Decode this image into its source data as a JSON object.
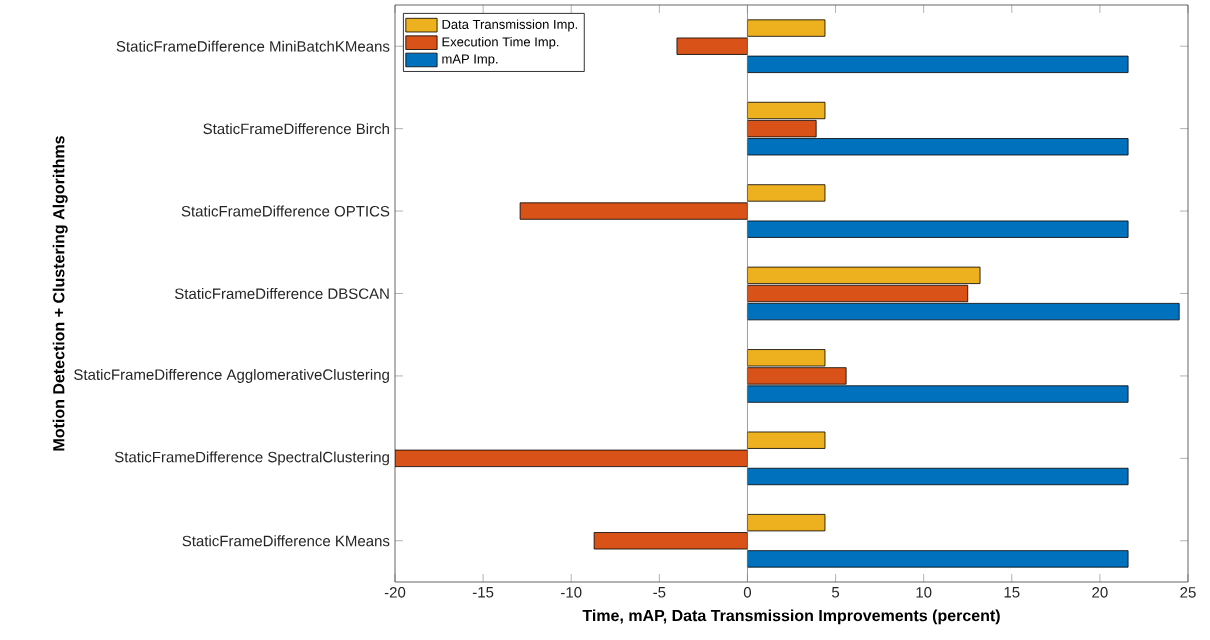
{
  "chart_data": {
    "type": "bar",
    "orientation": "horizontal",
    "xlabel": "Time, mAP, Data Transmission Improvements (percent)",
    "ylabel": "Motion Detection + Clustering Algorithms",
    "categories": [
      "StaticFrameDifference MiniBatchKMeans",
      "StaticFrameDifference Birch",
      "StaticFrameDifference OPTICS",
      "StaticFrameDifference DBSCAN",
      "StaticFrameDifference AgglomerativeClustering",
      "StaticFrameDifference SpectralClustering",
      "StaticFrameDifference KMeans"
    ],
    "series": [
      {
        "name": "Data Transmission Imp.",
        "color": "#edb120",
        "values": [
          4.4,
          4.4,
          4.4,
          13.2,
          4.4,
          4.4,
          4.4
        ]
      },
      {
        "name": "Execution Time Imp.",
        "color": "#d95319",
        "values": [
          -4.0,
          3.9,
          -12.9,
          12.5,
          5.6,
          -20,
          -8.7
        ]
      },
      {
        "name": "mAP Imp.",
        "color": "#0072bd",
        "values": [
          21.6,
          21.6,
          21.6,
          24.5,
          21.6,
          21.6,
          21.6
        ]
      }
    ],
    "xlim": [
      -20,
      25
    ],
    "xticks": [
      -20,
      -15,
      -10,
      -5,
      0,
      5,
      10,
      15,
      20,
      25
    ],
    "ref_lines": [
      {
        "axis": "x",
        "value": 0,
        "color": "#808080"
      }
    ],
    "legend": "top left"
  }
}
